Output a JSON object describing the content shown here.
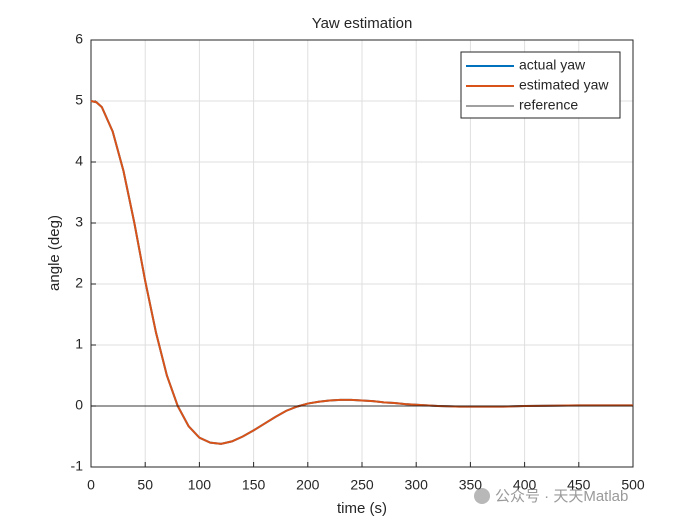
{
  "chart_data": {
    "type": "line",
    "title": "Yaw estimation",
    "xlabel": "time (s)",
    "ylabel": "angle (deg)",
    "series": [
      {
        "name": "actual yaw",
        "color": "#0072BD",
        "x": [
          0,
          5,
          10,
          20,
          30,
          40,
          50,
          60,
          70,
          80,
          90,
          100,
          110,
          120,
          130,
          140,
          150,
          160,
          170,
          180,
          190,
          200,
          210,
          220,
          230,
          240,
          250,
          260,
          270,
          280,
          290,
          300,
          320,
          340,
          360,
          380,
          400,
          450,
          500
        ],
        "values": [
          5.0,
          4.98,
          4.9,
          4.5,
          3.85,
          3.0,
          2.05,
          1.2,
          0.5,
          0.0,
          -0.33,
          -0.52,
          -0.6,
          -0.62,
          -0.58,
          -0.5,
          -0.4,
          -0.29,
          -0.18,
          -0.08,
          -0.01,
          0.04,
          0.07,
          0.09,
          0.1,
          0.1,
          0.09,
          0.08,
          0.06,
          0.05,
          0.03,
          0.02,
          0.0,
          -0.01,
          -0.01,
          -0.01,
          0.0,
          0.01,
          0.01
        ]
      },
      {
        "name": "estimated yaw",
        "color": "#D95319",
        "x": [
          0,
          5,
          10,
          20,
          30,
          40,
          50,
          60,
          70,
          80,
          90,
          100,
          110,
          120,
          130,
          140,
          150,
          160,
          170,
          180,
          190,
          200,
          210,
          220,
          230,
          240,
          250,
          260,
          270,
          280,
          290,
          300,
          320,
          340,
          360,
          380,
          400,
          450,
          500
        ],
        "values": [
          5.0,
          4.98,
          4.9,
          4.5,
          3.85,
          3.0,
          2.05,
          1.2,
          0.5,
          0.0,
          -0.33,
          -0.52,
          -0.6,
          -0.62,
          -0.58,
          -0.5,
          -0.4,
          -0.29,
          -0.18,
          -0.08,
          -0.01,
          0.04,
          0.07,
          0.09,
          0.1,
          0.1,
          0.09,
          0.08,
          0.06,
          0.05,
          0.03,
          0.02,
          0.0,
          -0.01,
          -0.01,
          -0.01,
          0.0,
          0.01,
          0.01
        ]
      },
      {
        "name": "reference",
        "color": "#000000",
        "x": [
          0,
          500
        ],
        "values": [
          0,
          0
        ]
      }
    ],
    "xlim": [
      0,
      500
    ],
    "xticks": [
      0,
      50,
      100,
      150,
      200,
      250,
      300,
      350,
      400,
      450,
      500
    ],
    "ylim": [
      -1,
      6
    ],
    "yticks": [
      -1,
      0,
      1,
      2,
      3,
      4,
      5,
      6
    ],
    "grid": true,
    "legend": "northeast",
    "watermark": "公众号 · 天天Matlab"
  }
}
